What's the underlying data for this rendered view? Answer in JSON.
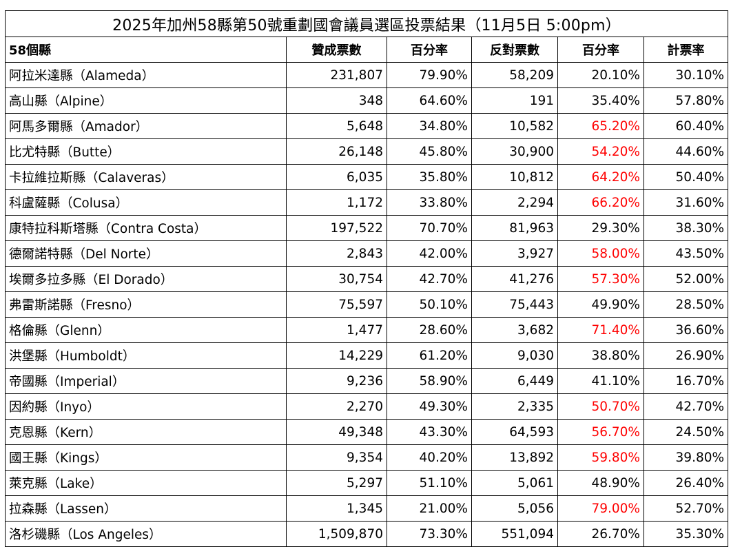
{
  "title": "2025年加州58縣第50號重劃國會議員選區投票結果（11月5日 5:00pm）",
  "headers": [
    "58個縣",
    "贊成票數",
    "百分率",
    "反對票數",
    "百分率",
    "計票率"
  ],
  "colors": {
    "majority_no": "#ff0000",
    "text": "#000000",
    "border": "#000000"
  },
  "rows": [
    {
      "county": "阿拉米達縣（Alameda）",
      "yes_votes": "231,807",
      "yes_pct": "79.90%",
      "no_votes": "58,209",
      "no_pct": "20.10%",
      "counted": "30.10%",
      "no_majority": false
    },
    {
      "county": "高山縣（Alpine）",
      "yes_votes": "348",
      "yes_pct": "64.60%",
      "no_votes": "191",
      "no_pct": "35.40%",
      "counted": "57.80%",
      "no_majority": false
    },
    {
      "county": "阿馬多爾縣（Amador）",
      "yes_votes": "5,648",
      "yes_pct": "34.80%",
      "no_votes": "10,582",
      "no_pct": "65.20%",
      "counted": "60.40%",
      "no_majority": true
    },
    {
      "county": "比尤特縣（Butte）",
      "yes_votes": "26,148",
      "yes_pct": "45.80%",
      "no_votes": "30,900",
      "no_pct": "54.20%",
      "counted": "44.60%",
      "no_majority": true
    },
    {
      "county": "卡拉維拉斯縣（Calaveras）",
      "yes_votes": "6,035",
      "yes_pct": "35.80%",
      "no_votes": "10,812",
      "no_pct": "64.20%",
      "counted": "50.40%",
      "no_majority": true
    },
    {
      "county": "科盧薩縣（Colusa）",
      "yes_votes": "1,172",
      "yes_pct": "33.80%",
      "no_votes": "2,294",
      "no_pct": "66.20%",
      "counted": "31.60%",
      "no_majority": true
    },
    {
      "county": "康特拉科斯塔縣（Contra Costa）",
      "yes_votes": "197,522",
      "yes_pct": "70.70%",
      "no_votes": "81,963",
      "no_pct": "29.30%",
      "counted": "38.30%",
      "no_majority": false
    },
    {
      "county": "德爾諾特縣（Del Norte）",
      "yes_votes": "2,843",
      "yes_pct": "42.00%",
      "no_votes": "3,927",
      "no_pct": "58.00%",
      "counted": "43.50%",
      "no_majority": true
    },
    {
      "county": "埃爾多拉多縣（El Dorado）",
      "yes_votes": "30,754",
      "yes_pct": "42.70%",
      "no_votes": "41,276",
      "no_pct": "57.30%",
      "counted": "52.00%",
      "no_majority": true
    },
    {
      "county": "弗雷斯諾縣（Fresno）",
      "yes_votes": "75,597",
      "yes_pct": "50.10%",
      "no_votes": "75,443",
      "no_pct": "49.90%",
      "counted": "28.50%",
      "no_majority": false
    },
    {
      "county": "格倫縣（Glenn）",
      "yes_votes": "1,477",
      "yes_pct": "28.60%",
      "no_votes": "3,682",
      "no_pct": "71.40%",
      "counted": "36.60%",
      "no_majority": true
    },
    {
      "county": "洪堡縣（Humboldt）",
      "yes_votes": "14,229",
      "yes_pct": "61.20%",
      "no_votes": "9,030",
      "no_pct": "38.80%",
      "counted": "26.90%",
      "no_majority": false
    },
    {
      "county": "帝國縣（Imperial）",
      "yes_votes": "9,236",
      "yes_pct": "58.90%",
      "no_votes": "6,449",
      "no_pct": "41.10%",
      "counted": "16.70%",
      "no_majority": false
    },
    {
      "county": "因約縣（Inyo）",
      "yes_votes": "2,270",
      "yes_pct": "49.30%",
      "no_votes": "2,335",
      "no_pct": "50.70%",
      "counted": "42.70%",
      "no_majority": true
    },
    {
      "county": "克恩縣（Kern）",
      "yes_votes": "49,348",
      "yes_pct": "43.30%",
      "no_votes": "64,593",
      "no_pct": "56.70%",
      "counted": "24.50%",
      "no_majority": true
    },
    {
      "county": "國王縣（Kings）",
      "yes_votes": "9,354",
      "yes_pct": "40.20%",
      "no_votes": "13,892",
      "no_pct": "59.80%",
      "counted": "39.80%",
      "no_majority": true
    },
    {
      "county": "萊克縣（Lake）",
      "yes_votes": "5,297",
      "yes_pct": "51.10%",
      "no_votes": "5,061",
      "no_pct": "48.90%",
      "counted": "26.40%",
      "no_majority": false
    },
    {
      "county": "拉森縣（Lassen）",
      "yes_votes": "1,345",
      "yes_pct": "21.00%",
      "no_votes": "5,056",
      "no_pct": "79.00%",
      "counted": "52.70%",
      "no_majority": true
    },
    {
      "county": "洛杉磯縣（Los Angeles）",
      "yes_votes": "1,509,870",
      "yes_pct": "73.30%",
      "no_votes": "551,094",
      "no_pct": "26.70%",
      "counted": "35.30%",
      "no_majority": false
    }
  ]
}
